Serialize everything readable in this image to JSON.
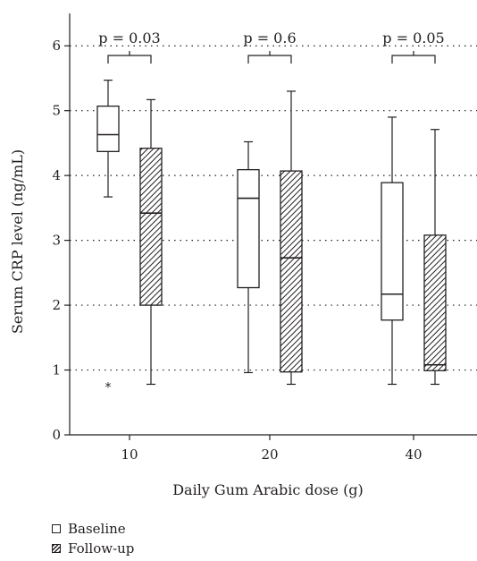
{
  "chart_data": {
    "type": "boxplot",
    "xlabel": "Daily Gum Arabic dose (g)",
    "ylabel": "Serum CRP level (ng/mL)",
    "ylim": [
      0,
      6.5
    ],
    "yticks": [
      0,
      1,
      2,
      3,
      4,
      5,
      6
    ],
    "grid": "horizontal dotted",
    "legend_position": "bottom-left",
    "categories": [
      "10",
      "20",
      "40"
    ],
    "series": [
      {
        "name": "Baseline",
        "fill": "white",
        "boxes": [
          {
            "min": 3.67,
            "q1": 4.37,
            "median": 4.63,
            "q3": 5.07,
            "max": 5.47,
            "outliers": [
              0.78
            ]
          },
          {
            "min": 0.96,
            "q1": 2.27,
            "median": 3.65,
            "q3": 4.09,
            "max": 4.52,
            "outliers": []
          },
          {
            "min": 0.78,
            "q1": 1.77,
            "median": 2.17,
            "q3": 3.89,
            "max": 4.9,
            "outliers": []
          }
        ]
      },
      {
        "name": "Follow-up",
        "fill": "hatched",
        "boxes": [
          {
            "min": 0.78,
            "q1": 2.0,
            "median": 3.42,
            "q3": 4.42,
            "max": 5.17,
            "outliers": []
          },
          {
            "min": 0.78,
            "q1": 0.97,
            "median": 2.73,
            "q3": 4.07,
            "max": 5.3,
            "outliers": []
          },
          {
            "min": 0.78,
            "q1": 0.99,
            "median": 1.08,
            "q3": 3.08,
            "max": 4.71,
            "outliers": []
          }
        ]
      }
    ],
    "annotations": [
      {
        "category": "10",
        "text": "p = 0.03"
      },
      {
        "category": "20",
        "text": "p = 0.6"
      },
      {
        "category": "40",
        "text": "p = 0.05"
      }
    ]
  },
  "colors": {
    "ink": "#231f20",
    "background": "#ffffff"
  }
}
